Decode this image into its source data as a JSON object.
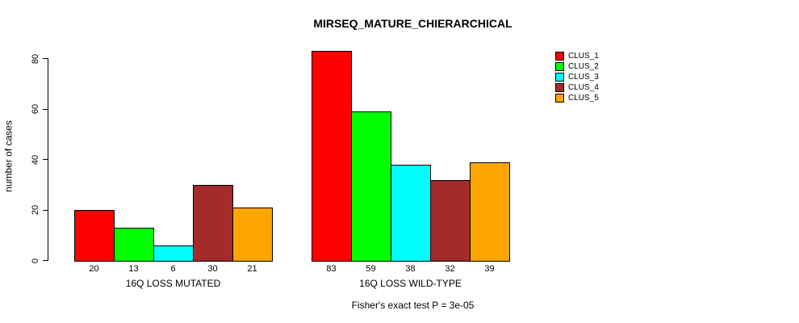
{
  "chart_data": {
    "type": "bar",
    "title": "MIRSEQ_MATURE_CHIERARCHICAL",
    "ylabel": "number of cases",
    "xlabel": "",
    "ylim": [
      0,
      80
    ],
    "yticks": [
      0,
      20,
      40,
      60,
      80
    ],
    "grid": false,
    "legend_position": "top-right",
    "categories": [
      "16Q LOSS MUTATED",
      "16Q LOSS WILD-TYPE"
    ],
    "series": [
      {
        "name": "CLUS_1",
        "color": "#FF0000",
        "values": [
          20,
          83
        ]
      },
      {
        "name": "CLUS_2",
        "color": "#00FF00",
        "values": [
          13,
          59
        ]
      },
      {
        "name": "CLUS_3",
        "color": "#00FFFF",
        "values": [
          6,
          38
        ]
      },
      {
        "name": "CLUS_4",
        "color": "#A52A2A",
        "values": [
          30,
          32
        ]
      },
      {
        "name": "CLUS_5",
        "color": "#FFA500",
        "values": [
          21,
          39
        ]
      }
    ],
    "groups": [
      {
        "label": "16Q LOSS MUTATED",
        "values": [
          20,
          13,
          6,
          30,
          21
        ]
      },
      {
        "label": "16Q LOSS WILD-TYPE",
        "values": [
          83,
          59,
          38,
          32,
          39
        ]
      }
    ],
    "bar_value_labels": [
      [
        20,
        13,
        6,
        30,
        21
      ],
      [
        83,
        59,
        38,
        32,
        39
      ]
    ],
    "footnote": "Fisher's exact test P = 3e-05"
  }
}
